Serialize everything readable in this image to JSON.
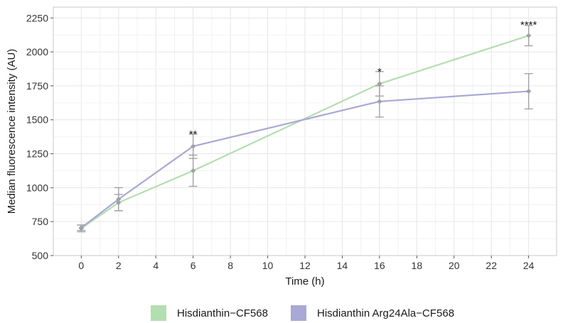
{
  "chart_data": {
    "type": "line",
    "xlabel": "Time (h)",
    "ylabel": "Median fluorescence intensity (AU)",
    "xlim": [
      -1.5,
      25.5
    ],
    "ylim": [
      500,
      2330
    ],
    "x_ticks": [
      0,
      2,
      4,
      6,
      8,
      10,
      12,
      14,
      16,
      18,
      20,
      22,
      24
    ],
    "y_ticks": [
      500,
      750,
      1000,
      1250,
      1500,
      1750,
      2000,
      2250
    ],
    "grid": true,
    "legend_position": "bottom",
    "series": [
      {
        "name": "Hisdianthin−CF568",
        "color": "#b3deb0",
        "points": [
          {
            "x": 0,
            "y": 700,
            "err": 25
          },
          {
            "x": 2,
            "y": 890,
            "err": 60
          },
          {
            "x": 6,
            "y": 1125,
            "err": 115
          },
          {
            "x": 16,
            "y": 1765,
            "err": 90
          },
          {
            "x": 24,
            "y": 2120,
            "err": 75
          }
        ]
      },
      {
        "name": "Hisdianthin Arg24Ala−CF568",
        "color": "#a9a8d6",
        "points": [
          {
            "x": 0,
            "y": 705,
            "err": 20
          },
          {
            "x": 2,
            "y": 915,
            "err": 85
          },
          {
            "x": 6,
            "y": 1305,
            "err": 90
          },
          {
            "x": 16,
            "y": 1635,
            "err": 115
          },
          {
            "x": 24,
            "y": 1710,
            "err": 130
          }
        ]
      }
    ],
    "annotations": [
      {
        "x": 6,
        "y": 1395,
        "text": "**"
      },
      {
        "x": 16,
        "y": 1855,
        "text": "*"
      },
      {
        "x": 24,
        "y": 2200,
        "text": "****"
      }
    ]
  }
}
